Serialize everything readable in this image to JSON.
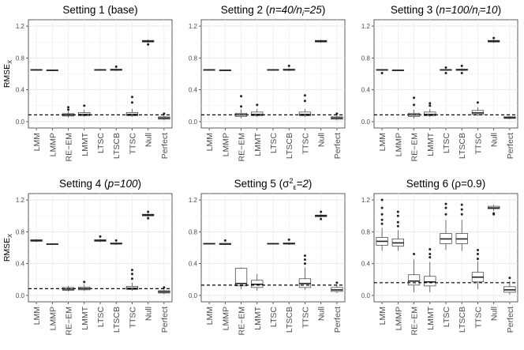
{
  "chart_data": [
    {
      "type": "box",
      "title": "Setting 1 (base)",
      "title_parts": [
        {
          "t": "Setting 1 (base)",
          "i": false
        }
      ],
      "ylabel": "RMSE",
      "ylabel_sub": "X",
      "ylim": [
        -0.08,
        1.28
      ],
      "yticks": [
        "0.0",
        "0.4",
        "0.8",
        "1.2"
      ],
      "ytick_values": [
        0,
        0.4,
        0.8,
        1.2
      ],
      "reference_line": 0.085,
      "categories": [
        "LMM",
        "LMMP",
        "RE−EM",
        "LMMT",
        "LTSC",
        "LTSCB",
        "TTSC",
        "Null",
        "Perfect"
      ],
      "boxes": [
        {
          "q1": 0.645,
          "median": 0.65,
          "q3": 0.655,
          "lo": 0.64,
          "hi": 0.66,
          "outliers": []
        },
        {
          "q1": 0.64,
          "median": 0.645,
          "q3": 0.65,
          "lo": 0.635,
          "hi": 0.655,
          "outliers": []
        },
        {
          "q1": 0.07,
          "median": 0.085,
          "q3": 0.1,
          "lo": 0.05,
          "hi": 0.13,
          "outliers": [
            0.15,
            0.18
          ]
        },
        {
          "q1": 0.075,
          "median": 0.09,
          "q3": 0.115,
          "lo": 0.06,
          "hi": 0.15,
          "outliers": [
            0.2
          ]
        },
        {
          "q1": 0.645,
          "median": 0.65,
          "q3": 0.655,
          "lo": 0.64,
          "hi": 0.66,
          "outliers": []
        },
        {
          "q1": 0.645,
          "median": 0.65,
          "q3": 0.66,
          "lo": 0.635,
          "hi": 0.67,
          "outliers": [
            0.69
          ]
        },
        {
          "q1": 0.075,
          "median": 0.09,
          "q3": 0.115,
          "lo": 0.06,
          "hi": 0.16,
          "outliers": [
            0.24,
            0.31
          ]
        },
        {
          "q1": 1.0,
          "median": 1.01,
          "q3": 1.02,
          "lo": 0.99,
          "hi": 1.03,
          "outliers": [
            0.97
          ]
        },
        {
          "q1": 0.03,
          "median": 0.045,
          "q3": 0.06,
          "lo": 0.015,
          "hi": 0.08,
          "outliers": [
            0.1
          ]
        }
      ]
    },
    {
      "type": "box",
      "title": "Setting 2 (n=40/n_i=25)",
      "title_parts": [
        {
          "t": "Setting 2 (",
          "i": false
        },
        {
          "t": "n=40/n",
          "i": true
        },
        {
          "t": "i",
          "i": true,
          "sub": true
        },
        {
          "t": "=25",
          "i": true
        },
        {
          "t": ")",
          "i": false
        }
      ],
      "ylabel": "",
      "ylim": [
        -0.08,
        1.28
      ],
      "yticks": [
        "0.0",
        "0.4",
        "0.8",
        "1.2"
      ],
      "ytick_values": [
        0,
        0.4,
        0.8,
        1.2
      ],
      "reference_line": 0.085,
      "categories": [
        "LMM",
        "LMMP",
        "RE−EM",
        "LMMT",
        "LTSC",
        "LTSCB",
        "TTSC",
        "Null",
        "Perfect"
      ],
      "boxes": [
        {
          "q1": 0.645,
          "median": 0.65,
          "q3": 0.655,
          "lo": 0.64,
          "hi": 0.66,
          "outliers": []
        },
        {
          "q1": 0.64,
          "median": 0.645,
          "q3": 0.65,
          "lo": 0.635,
          "hi": 0.655,
          "outliers": []
        },
        {
          "q1": 0.065,
          "median": 0.085,
          "q3": 0.105,
          "lo": 0.04,
          "hi": 0.15,
          "outliers": [
            0.19,
            0.32
          ]
        },
        {
          "q1": 0.075,
          "median": 0.09,
          "q3": 0.12,
          "lo": 0.06,
          "hi": 0.16,
          "outliers": [
            0.21
          ]
        },
        {
          "q1": 0.645,
          "median": 0.65,
          "q3": 0.655,
          "lo": 0.64,
          "hi": 0.66,
          "outliers": []
        },
        {
          "q1": 0.645,
          "median": 0.65,
          "q3": 0.66,
          "lo": 0.635,
          "hi": 0.67,
          "outliers": [
            0.7
          ]
        },
        {
          "q1": 0.075,
          "median": 0.09,
          "q3": 0.12,
          "lo": 0.06,
          "hi": 0.16,
          "outliers": [
            0.26,
            0.33
          ]
        },
        {
          "q1": 1.0,
          "median": 1.01,
          "q3": 1.02,
          "lo": 0.99,
          "hi": 1.03,
          "outliers": []
        },
        {
          "q1": 0.03,
          "median": 0.045,
          "q3": 0.06,
          "lo": 0.015,
          "hi": 0.08,
          "outliers": [
            0.1
          ]
        }
      ]
    },
    {
      "type": "box",
      "title": "Setting 3 (n=100/n_i=10)",
      "title_parts": [
        {
          "t": "Setting 3 (",
          "i": false
        },
        {
          "t": "n=100/n",
          "i": true
        },
        {
          "t": "i",
          "i": true,
          "sub": true
        },
        {
          "t": "=10",
          "i": true
        },
        {
          "t": ")",
          "i": false
        }
      ],
      "ylabel": "",
      "ylim": [
        -0.08,
        1.28
      ],
      "yticks": [
        "0.0",
        "0.4",
        "0.8",
        "1.2"
      ],
      "ytick_values": [
        0,
        0.4,
        0.8,
        1.2
      ],
      "reference_line": 0.085,
      "categories": [
        "LMM",
        "LMMP",
        "RE−EM",
        "LMMT",
        "LTSC",
        "LTSCB",
        "TTSC",
        "Null",
        "Perfect"
      ],
      "boxes": [
        {
          "q1": 0.645,
          "median": 0.65,
          "q3": 0.655,
          "lo": 0.64,
          "hi": 0.66,
          "outliers": [
            0.61
          ]
        },
        {
          "q1": 0.64,
          "median": 0.645,
          "q3": 0.65,
          "lo": 0.635,
          "hi": 0.655,
          "outliers": []
        },
        {
          "q1": 0.065,
          "median": 0.085,
          "q3": 0.105,
          "lo": 0.04,
          "hi": 0.15,
          "outliers": [
            0.21,
            0.3
          ]
        },
        {
          "q1": 0.075,
          "median": 0.09,
          "q3": 0.12,
          "lo": 0.06,
          "hi": 0.16,
          "outliers": [
            0.2,
            0.23
          ]
        },
        {
          "q1": 0.645,
          "median": 0.65,
          "q3": 0.655,
          "lo": 0.64,
          "hi": 0.66,
          "outliers": [
            0.61,
            0.68
          ]
        },
        {
          "q1": 0.645,
          "median": 0.65,
          "q3": 0.66,
          "lo": 0.635,
          "hi": 0.67,
          "outliers": [
            0.61,
            0.7
          ]
        },
        {
          "q1": 0.09,
          "median": 0.11,
          "q3": 0.14,
          "lo": 0.07,
          "hi": 0.18,
          "outliers": [
            0.24
          ]
        },
        {
          "q1": 1.0,
          "median": 1.01,
          "q3": 1.02,
          "lo": 0.99,
          "hi": 1.03,
          "outliers": [
            1.05
          ]
        },
        {
          "q1": 0.04,
          "median": 0.05,
          "q3": 0.06,
          "lo": 0.03,
          "hi": 0.07,
          "outliers": []
        }
      ]
    },
    {
      "type": "box",
      "title": "Setting 4 (p=100)",
      "title_parts": [
        {
          "t": "Setting 4 (",
          "i": false
        },
        {
          "t": "p=100",
          "i": true
        },
        {
          "t": ")",
          "i": false
        }
      ],
      "ylabel": "RMSE",
      "ylabel_sub": "X",
      "ylim": [
        -0.08,
        1.28
      ],
      "yticks": [
        "0.0",
        "0.4",
        "0.8",
        "1.2"
      ],
      "ytick_values": [
        0,
        0.4,
        0.8,
        1.2
      ],
      "reference_line": 0.085,
      "categories": [
        "LMM",
        "LMMP",
        "RE−EM",
        "LMMT",
        "LTSC",
        "LTSCB",
        "TTSC",
        "Null",
        "Perfect"
      ],
      "boxes": [
        {
          "q1": 0.68,
          "median": 0.69,
          "q3": 0.7,
          "lo": 0.67,
          "hi": 0.71,
          "outliers": []
        },
        {
          "q1": 0.64,
          "median": 0.645,
          "q3": 0.65,
          "lo": 0.635,
          "hi": 0.655,
          "outliers": []
        },
        {
          "q1": 0.065,
          "median": 0.08,
          "q3": 0.1,
          "lo": 0.05,
          "hi": 0.12,
          "outliers": []
        },
        {
          "q1": 0.07,
          "median": 0.085,
          "q3": 0.105,
          "lo": 0.055,
          "hi": 0.14,
          "outliers": [
            0.17
          ]
        },
        {
          "q1": 0.68,
          "median": 0.69,
          "q3": 0.7,
          "lo": 0.67,
          "hi": 0.71,
          "outliers": [
            0.74
          ]
        },
        {
          "q1": 0.645,
          "median": 0.65,
          "q3": 0.66,
          "lo": 0.635,
          "hi": 0.67,
          "outliers": [
            0.69
          ]
        },
        {
          "q1": 0.075,
          "median": 0.09,
          "q3": 0.115,
          "lo": 0.06,
          "hi": 0.16,
          "outliers": [
            0.21,
            0.27,
            0.32
          ]
        },
        {
          "q1": 1.0,
          "median": 1.01,
          "q3": 1.02,
          "lo": 0.99,
          "hi": 1.03,
          "outliers": [
            0.97,
            1.05
          ]
        },
        {
          "q1": 0.03,
          "median": 0.045,
          "q3": 0.06,
          "lo": 0.015,
          "hi": 0.08,
          "outliers": [
            0.1
          ]
        }
      ]
    },
    {
      "type": "box",
      "title": "Setting 5 (σ_ε^2=2)",
      "title_parts": [
        {
          "t": "Setting 5 (",
          "i": false
        },
        {
          "t": "σ",
          "i": false
        },
        {
          "t": "2",
          "i": false,
          "sup": true
        },
        {
          "t": "ε",
          "i": false,
          "sub": true
        },
        {
          "t": "=2",
          "i": true
        },
        {
          "t": ")",
          "i": false
        }
      ],
      "ylabel": "",
      "ylim": [
        -0.08,
        1.28
      ],
      "yticks": [
        "0.0",
        "0.4",
        "0.8",
        "1.2"
      ],
      "ytick_values": [
        0,
        0.4,
        0.8,
        1.2
      ],
      "reference_line": 0.13,
      "categories": [
        "LMM",
        "LMMP",
        "RE−EM",
        "LMMT",
        "LTSC",
        "LTSCB",
        "TTSC",
        "Null",
        "Perfect"
      ],
      "boxes": [
        {
          "q1": 0.645,
          "median": 0.65,
          "q3": 0.655,
          "lo": 0.64,
          "hi": 0.66,
          "outliers": []
        },
        {
          "q1": 0.64,
          "median": 0.645,
          "q3": 0.655,
          "lo": 0.635,
          "hi": 0.66,
          "outliers": [
            0.69
          ]
        },
        {
          "q1": 0.12,
          "median": 0.15,
          "q3": 0.34,
          "lo": 0.08,
          "hi": 0.35,
          "outliers": []
        },
        {
          "q1": 0.1,
          "median": 0.14,
          "q3": 0.19,
          "lo": 0.06,
          "hi": 0.27,
          "outliers": []
        },
        {
          "q1": 0.645,
          "median": 0.65,
          "q3": 0.655,
          "lo": 0.64,
          "hi": 0.66,
          "outliers": []
        },
        {
          "q1": 0.645,
          "median": 0.65,
          "q3": 0.66,
          "lo": 0.635,
          "hi": 0.67,
          "outliers": [
            0.7
          ]
        },
        {
          "q1": 0.1,
          "median": 0.15,
          "q3": 0.21,
          "lo": 0.07,
          "hi": 0.35,
          "outliers": [
            0.4,
            0.45,
            0.5
          ]
        },
        {
          "q1": 0.99,
          "median": 1.0,
          "q3": 1.01,
          "lo": 0.98,
          "hi": 1.02,
          "outliers": [
            0.96,
            1.05
          ]
        },
        {
          "q1": 0.05,
          "median": 0.07,
          "q3": 0.1,
          "lo": 0.03,
          "hi": 0.13,
          "outliers": [
            0.16
          ]
        }
      ]
    },
    {
      "type": "box",
      "title": "Setting 6 (ρ=0.9)",
      "title_parts": [
        {
          "t": "Setting 6 (",
          "i": false
        },
        {
          "t": "ρ=0.9",
          "i": false
        },
        {
          "t": ")",
          "i": false
        }
      ],
      "ylabel": "",
      "ylim": [
        -0.08,
        1.28
      ],
      "yticks": [
        "0.0",
        "0.4",
        "0.8",
        "1.2"
      ],
      "ytick_values": [
        0,
        0.4,
        0.8,
        1.2
      ],
      "reference_line": 0.16,
      "categories": [
        "LMM",
        "LMMP",
        "RE−EM",
        "LMMT",
        "LTSC",
        "LTSCB",
        "TTSC",
        "Null",
        "Perfect"
      ],
      "boxes": [
        {
          "q1": 0.63,
          "median": 0.68,
          "q3": 0.73,
          "lo": 0.56,
          "hi": 0.85,
          "outliers": [
            0.9,
            0.95,
            1.02,
            1.1,
            1.2
          ]
        },
        {
          "q1": 0.62,
          "median": 0.66,
          "q3": 0.71,
          "lo": 0.56,
          "hi": 0.82,
          "outliers": [
            0.87,
            0.92,
            1.0,
            1.05
          ]
        },
        {
          "q1": 0.13,
          "median": 0.18,
          "q3": 0.26,
          "lo": 0.04,
          "hi": 0.45,
          "outliers": [
            0.52
          ]
        },
        {
          "q1": 0.12,
          "median": 0.17,
          "q3": 0.24,
          "lo": 0.04,
          "hi": 0.42,
          "outliers": [
            0.48,
            0.52,
            0.58
          ]
        },
        {
          "q1": 0.65,
          "median": 0.71,
          "q3": 0.78,
          "lo": 0.57,
          "hi": 0.95,
          "outliers": [
            1.02,
            1.1,
            1.15
          ]
        },
        {
          "q1": 0.65,
          "median": 0.71,
          "q3": 0.78,
          "lo": 0.56,
          "hi": 0.95,
          "outliers": [
            1.02,
            1.08,
            1.14
          ]
        },
        {
          "q1": 0.17,
          "median": 0.23,
          "q3": 0.29,
          "lo": 0.08,
          "hi": 0.43,
          "outliers": [
            0.46,
            0.52,
            0.57
          ]
        },
        {
          "q1": 1.09,
          "median": 1.1,
          "q3": 1.12,
          "lo": 1.06,
          "hi": 1.14,
          "outliers": [
            1.03,
            1.02
          ]
        },
        {
          "q1": 0.04,
          "median": 0.07,
          "q3": 0.11,
          "lo": 0.01,
          "hi": 0.18,
          "outliers": [
            0.22
          ]
        }
      ]
    }
  ]
}
